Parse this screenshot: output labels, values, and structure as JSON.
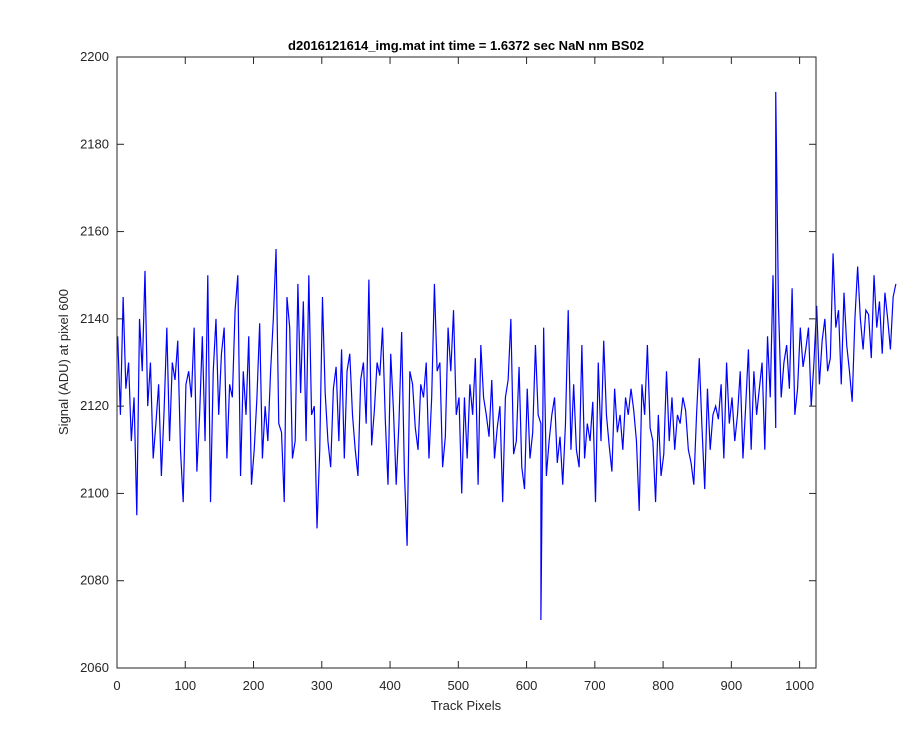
{
  "chart_data": {
    "type": "line",
    "title": "d2016121614_img.mat int time = 1.6372 sec  NaN nm BS02",
    "xlabel": "Track Pixels",
    "ylabel": "Signal (ADU) at pixel 600",
    "xlim": [
      0,
      1024
    ],
    "ylim": [
      2060,
      2200
    ],
    "xticks": [
      0,
      100,
      200,
      300,
      400,
      500,
      600,
      700,
      800,
      900,
      1000
    ],
    "yticks": [
      2060,
      2080,
      2100,
      2120,
      2140,
      2160,
      2180,
      2200
    ],
    "grid": false,
    "legend": "none",
    "line_color": "#0000ff",
    "series": [
      {
        "x_start": 1,
        "x_step": 4,
        "values": [
          2136,
          2118,
          2145,
          2124,
          2130,
          2112,
          2122,
          2095,
          2140,
          2128,
          2151,
          2120,
          2130,
          2108,
          2116,
          2125,
          2104,
          2119,
          2138,
          2112,
          2130,
          2126,
          2135,
          2110,
          2098,
          2125,
          2128,
          2122,
          2138,
          2105,
          2118,
          2136,
          2112,
          2150,
          2098,
          2128,
          2140,
          2118,
          2132,
          2138,
          2108,
          2125,
          2122,
          2142,
          2150,
          2104,
          2128,
          2118,
          2136,
          2102,
          2110,
          2122,
          2139,
          2108,
          2120,
          2112,
          2128,
          2140,
          2156,
          2116,
          2114,
          2098,
          2145,
          2138,
          2108,
          2112,
          2148,
          2123,
          2144,
          2112,
          2150,
          2118,
          2120,
          2092,
          2110,
          2145,
          2123,
          2112,
          2106,
          2124,
          2129,
          2112,
          2133,
          2108,
          2128,
          2132,
          2118,
          2110,
          2104,
          2126,
          2130,
          2116,
          2149,
          2111,
          2119,
          2130,
          2127,
          2138,
          2117,
          2102,
          2132,
          2119,
          2102,
          2116,
          2137,
          2105,
          2088,
          2128,
          2125,
          2115,
          2110,
          2125,
          2122,
          2130,
          2108,
          2122,
          2148,
          2128,
          2130,
          2106,
          2113,
          2138,
          2128,
          2142,
          2118,
          2122,
          2100,
          2122,
          2108,
          2125,
          2118,
          2131,
          2102,
          2134,
          2122,
          2118,
          2113,
          2126,
          2108,
          2115,
          2120,
          2098,
          2122,
          2126,
          2140,
          2109,
          2112,
          2129,
          2106,
          2101,
          2124,
          2108,
          2114,
          2134,
          2118,
          2116,
          2138,
          2104,
          2112,
          2118,
          2122,
          2107,
          2113,
          2102,
          2116,
          2142,
          2110,
          2125,
          2110,
          2106,
          2134,
          2108,
          2116,
          2112,
          2121,
          2098,
          2130,
          2112,
          2135,
          2118,
          2111,
          2105,
          2124,
          2114,
          2118,
          2110,
          2122,
          2118,
          2124,
          2119,
          2112,
          2096,
          2125,
          2118,
          2134,
          2115,
          2112,
          2098,
          2118,
          2104,
          2109,
          2128,
          2112,
          2122,
          2110,
          2118,
          2116,
          2122,
          2119,
          2110,
          2107,
          2102,
          2118,
          2131,
          2115,
          2101,
          2124,
          2110,
          2118,
          2120,
          2117,
          2125,
          2108,
          2130,
          2116,
          2122,
          2112,
          2118,
          2128,
          2108,
          2120,
          2133,
          2110,
          2128,
          2118,
          2124,
          2130,
          2110,
          2136,
          2122,
          2150,
          2115,
          2143,
          2122,
          2130,
          2134,
          2124,
          2147,
          2118,
          2124,
          2138,
          2129,
          2133,
          2138,
          2120,
          2130,
          2143,
          2125,
          2135,
          2140,
          2128,
          2131,
          2155,
          2138,
          2142,
          2125,
          2146,
          2134,
          2128,
          2121,
          2140,
          2152,
          2140,
          2133,
          2142,
          2141,
          2131,
          2150,
          2138,
          2144,
          2132,
          2146,
          2140,
          2133,
          2145,
          2148
        ],
        "peaks": [
          {
            "x": 965,
            "y": 2192
          },
          {
            "x": 621,
            "y": 2071
          }
        ]
      }
    ]
  }
}
